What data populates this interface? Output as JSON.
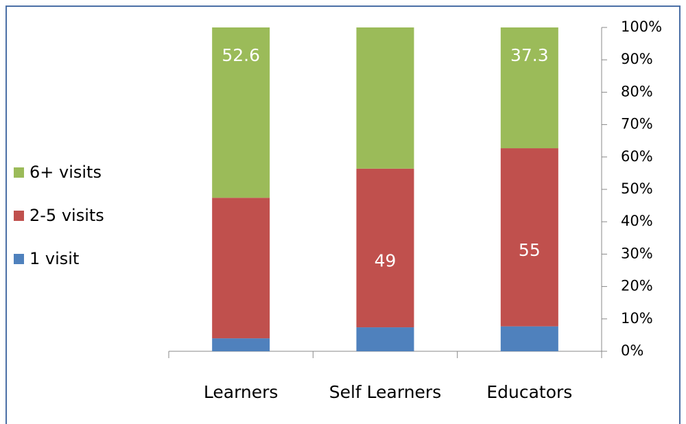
{
  "chart_data": {
    "type": "stacked_bar",
    "categories": [
      "Learners",
      "Self Learners",
      "Educators"
    ],
    "series": [
      {
        "name": "1 visit",
        "color": "#4f81bd",
        "values": [
          4.0,
          7.4,
          7.7
        ],
        "value_labels": [
          null,
          null,
          null
        ]
      },
      {
        "name": "2-5 visits",
        "color": "#c0504d",
        "values": [
          43.4,
          49,
          55
        ],
        "value_labels": [
          null,
          "49",
          "55"
        ]
      },
      {
        "name": "6+ visits",
        "color": "#9bbb59",
        "values": [
          52.6,
          43.6,
          37.3
        ],
        "value_labels": [
          "52.6",
          null,
          "37.3"
        ]
      }
    ],
    "ylim": [
      0,
      100
    ],
    "yticks": [
      {
        "value": 0,
        "label": "0%"
      },
      {
        "value": 10,
        "label": "10%"
      },
      {
        "value": 20,
        "label": "20%"
      },
      {
        "value": 30,
        "label": "30%"
      },
      {
        "value": 40,
        "label": "40%"
      },
      {
        "value": 50,
        "label": "50%"
      },
      {
        "value": 60,
        "label": "60%"
      },
      {
        "value": 70,
        "label": "70%"
      },
      {
        "value": 80,
        "label": "80%"
      },
      {
        "value": 90,
        "label": "90%"
      },
      {
        "value": 100,
        "label": "100%"
      }
    ],
    "yaxis_side": "right",
    "legend": "left"
  }
}
